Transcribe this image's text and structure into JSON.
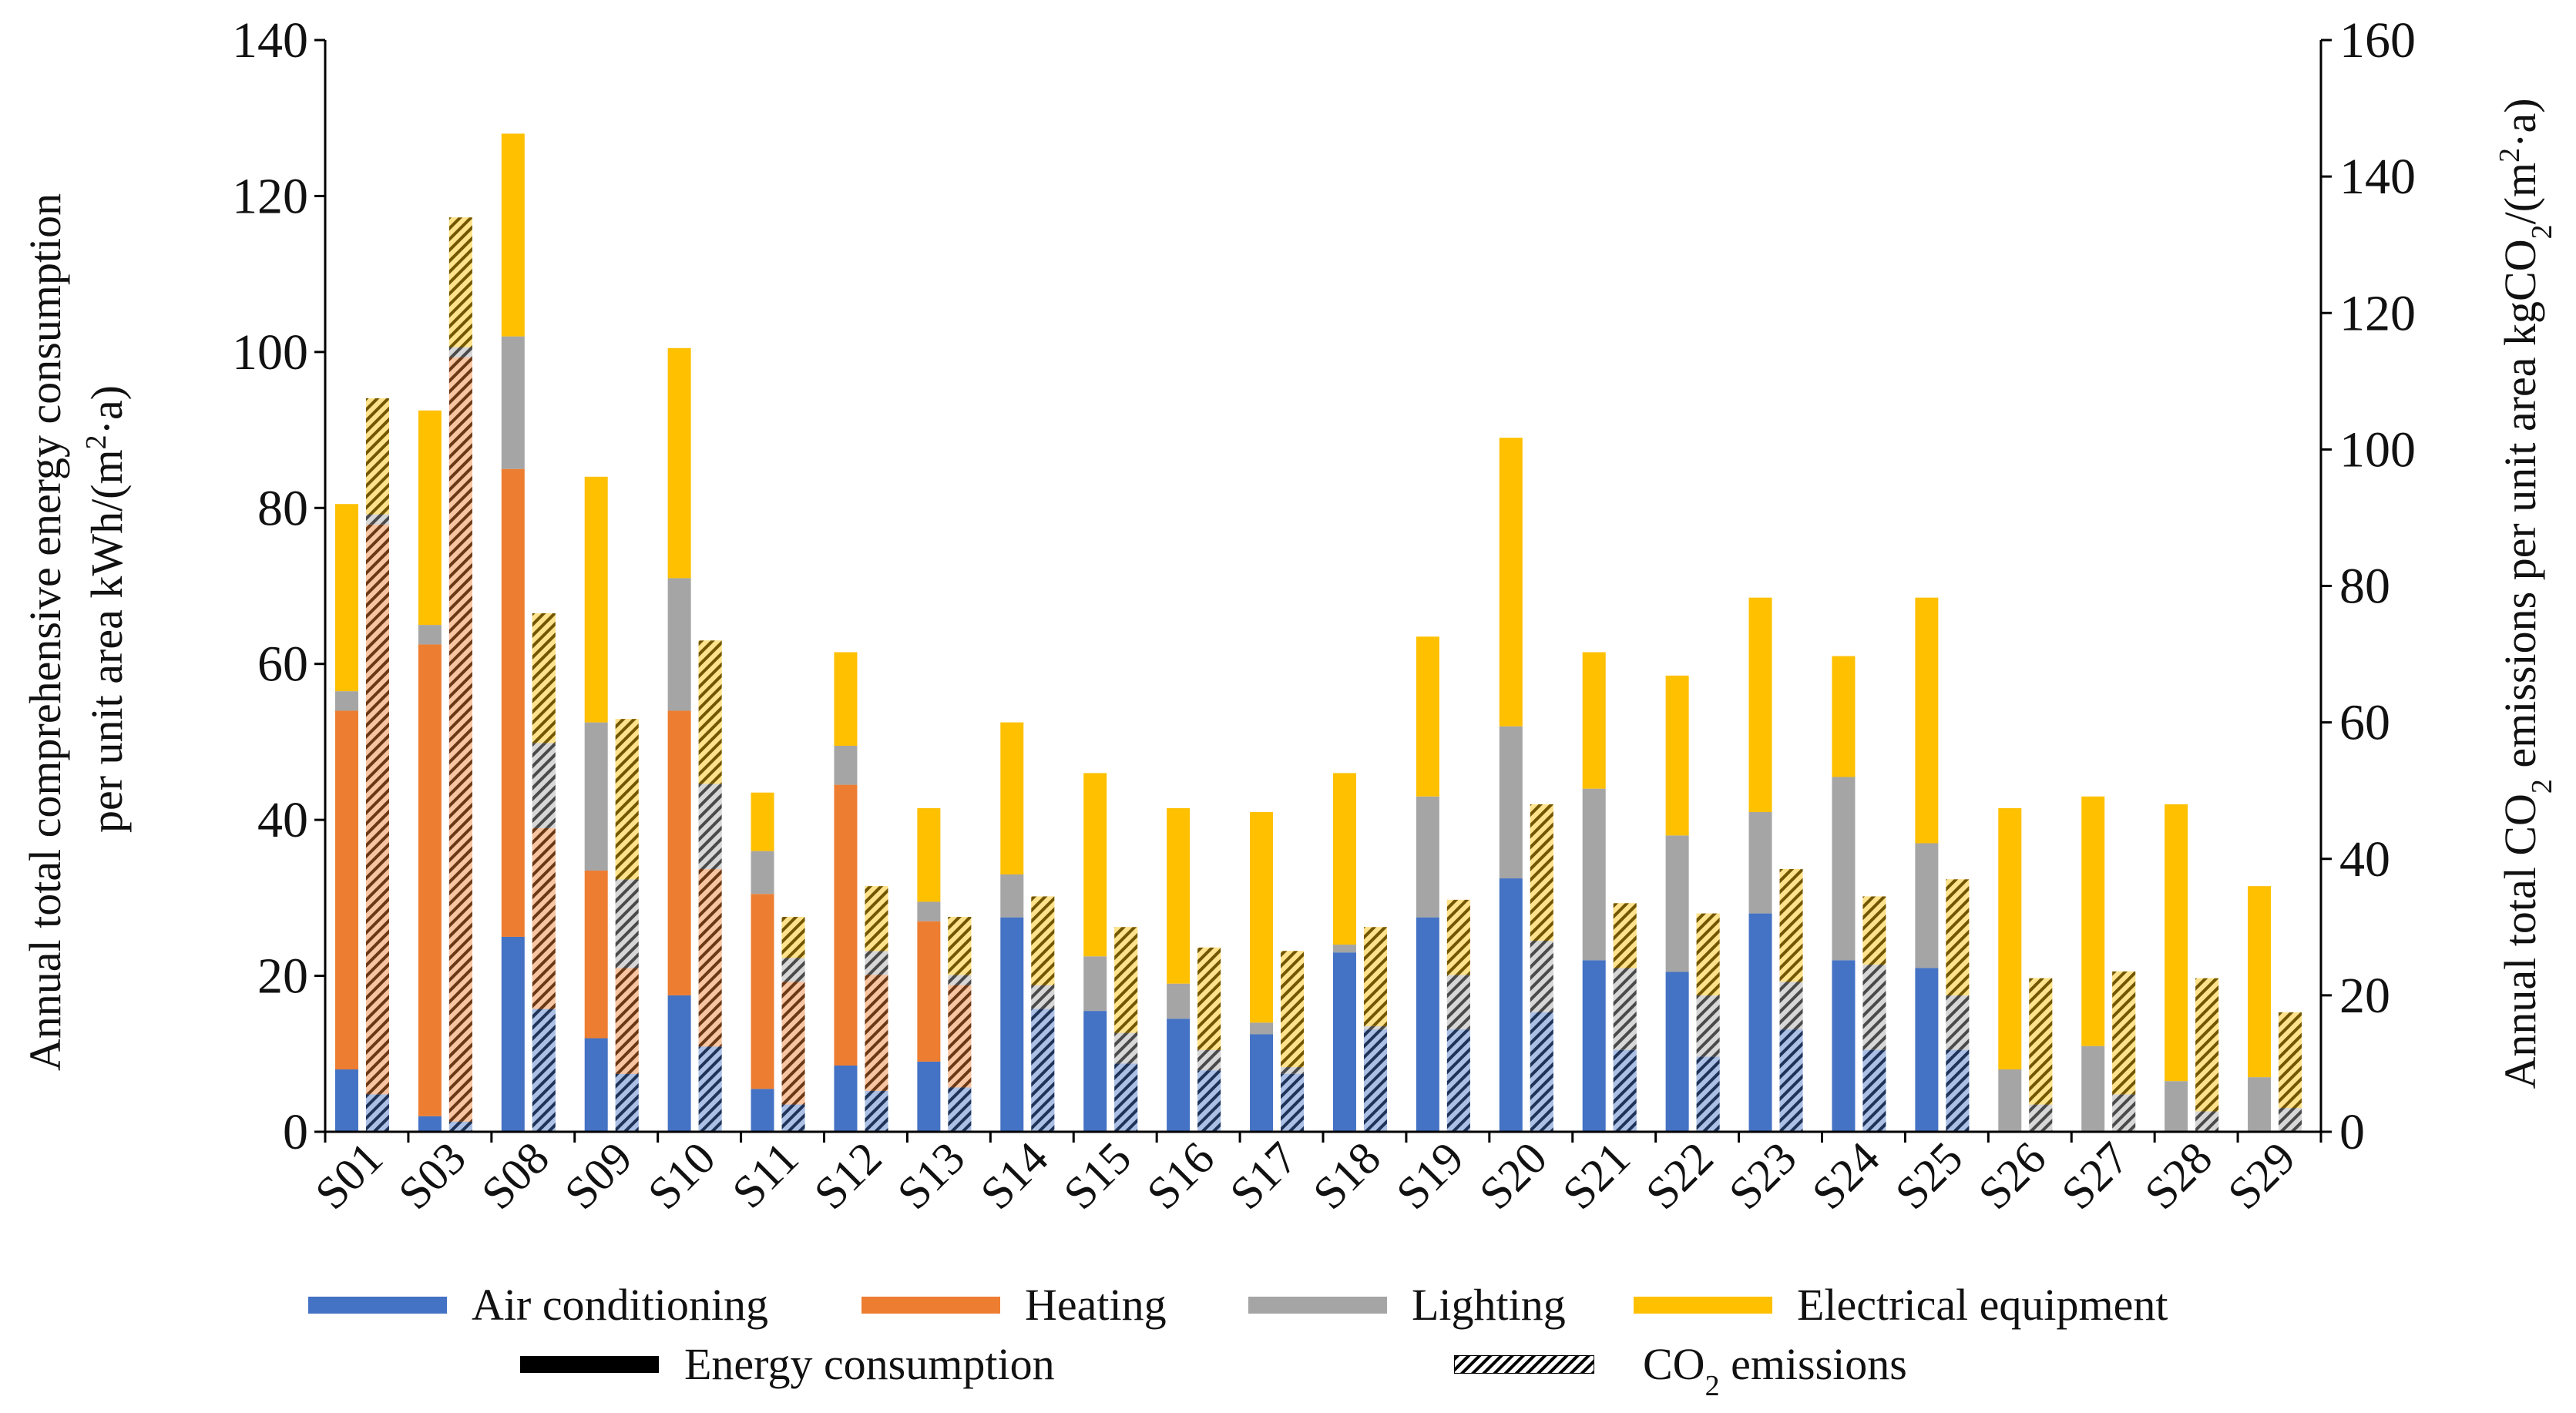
{
  "chart_data": {
    "type": "bar",
    "subtype": "stacked-paired",
    "categories": [
      "S01",
      "S03",
      "S08",
      "S09",
      "S10",
      "S11",
      "S12",
      "S13",
      "S14",
      "S15",
      "S16",
      "S17",
      "S18",
      "S19",
      "S20",
      "S21",
      "S22",
      "S23",
      "S24",
      "S25",
      "S26",
      "S27",
      "S28",
      "S29"
    ],
    "components": [
      "Air conditioning",
      "Heating",
      "Lighting",
      "Electrical equipment"
    ],
    "energy_series": [
      {
        "name": "Air conditioning",
        "values": [
          8,
          2,
          25,
          12,
          17.5,
          5.5,
          8.5,
          9,
          27.5,
          15.5,
          14.5,
          12.5,
          23,
          27.5,
          32.5,
          22,
          20.5,
          28,
          22,
          21,
          0,
          0,
          0,
          0
        ]
      },
      {
        "name": "Heating",
        "values": [
          46,
          60.5,
          60,
          21.5,
          36.5,
          25,
          36,
          18,
          0,
          0,
          0,
          0,
          0,
          0,
          0,
          0,
          0,
          0,
          0,
          0,
          0,
          0,
          0,
          0
        ]
      },
      {
        "name": "Lighting",
        "values": [
          2.5,
          2.5,
          17,
          19,
          17,
          5.5,
          5,
          2.5,
          5.5,
          7,
          4.5,
          1.5,
          1,
          15.5,
          19.5,
          22,
          17.5,
          13,
          23.5,
          16,
          8,
          11,
          6.5,
          7
        ]
      },
      {
        "name": "Electrical equipment",
        "values": [
          24,
          27.5,
          26,
          31.5,
          29.5,
          7.5,
          12,
          12,
          19.5,
          23.5,
          22.5,
          27,
          22,
          20.5,
          37,
          17.5,
          20.5,
          27.5,
          15.5,
          31.5,
          33.5,
          32,
          35.5,
          24.5
        ]
      }
    ],
    "co2_series": [
      {
        "name": "Air conditioning",
        "values": [
          5.5,
          1.5,
          18,
          8.5,
          12.5,
          4,
          6,
          6.5,
          18,
          10,
          9,
          8.5,
          15,
          15,
          17.5,
          12,
          11,
          15,
          12,
          12,
          0,
          0,
          0,
          0
        ]
      },
      {
        "name": "Heating",
        "values": [
          83.5,
          112,
          26.5,
          15.5,
          26,
          18,
          17,
          15,
          0,
          0,
          0,
          0,
          0,
          0,
          0,
          0,
          0,
          0,
          0,
          0,
          0,
          0,
          0,
          0
        ]
      },
      {
        "name": "Lighting",
        "values": [
          1.5,
          1.5,
          12.5,
          13,
          12.5,
          3.5,
          3.5,
          1.5,
          3.5,
          4.5,
          3,
          1,
          0.5,
          8,
          10.5,
          12,
          9,
          7,
          12.5,
          8,
          4,
          5.5,
          3,
          3.5
        ]
      },
      {
        "name": "Electrical equipment",
        "values": [
          17,
          19,
          19,
          23.5,
          21,
          6,
          9.5,
          8.5,
          13,
          15.5,
          15,
          17,
          14.5,
          11,
          20,
          9.5,
          12,
          16.5,
          10,
          17,
          18.5,
          18,
          19.5,
          14
        ]
      }
    ],
    "ylabel": "Annual total comprehensive energy consumption per unit area kWh/(m²·a)",
    "ylabel_lines": [
      "Annual total comprehensive energy consumption",
      "per unit area kWh/(m",
      "2",
      "·a)"
    ],
    "y2label_parts": [
      "Annual total CO",
      "2",
      " emissions per unit area kgCO",
      "2",
      "/(m",
      "2",
      "·a)"
    ],
    "ylim": [
      0,
      140
    ],
    "y_ticks": [
      0,
      20,
      40,
      60,
      80,
      100,
      120,
      140
    ],
    "y2lim": [
      0,
      160
    ],
    "y2_ticks": [
      0,
      20,
      40,
      60,
      80,
      100,
      120,
      140,
      160
    ],
    "legend": {
      "placement": "bottom",
      "items": [
        "Air conditioning",
        "Heating",
        "Lighting",
        "Electrical equipment"
      ],
      "pattern_items": [
        "Energy consumption"
      ],
      "pattern_items_co2": [
        "CO",
        "2",
        " emissions"
      ]
    },
    "colors": {
      "Air conditioning": "#4472C4",
      "Heating": "#ED7D31",
      "Lighting": "#A5A5A5",
      "Electrical equipment": "#FFC000"
    },
    "grid": false
  }
}
